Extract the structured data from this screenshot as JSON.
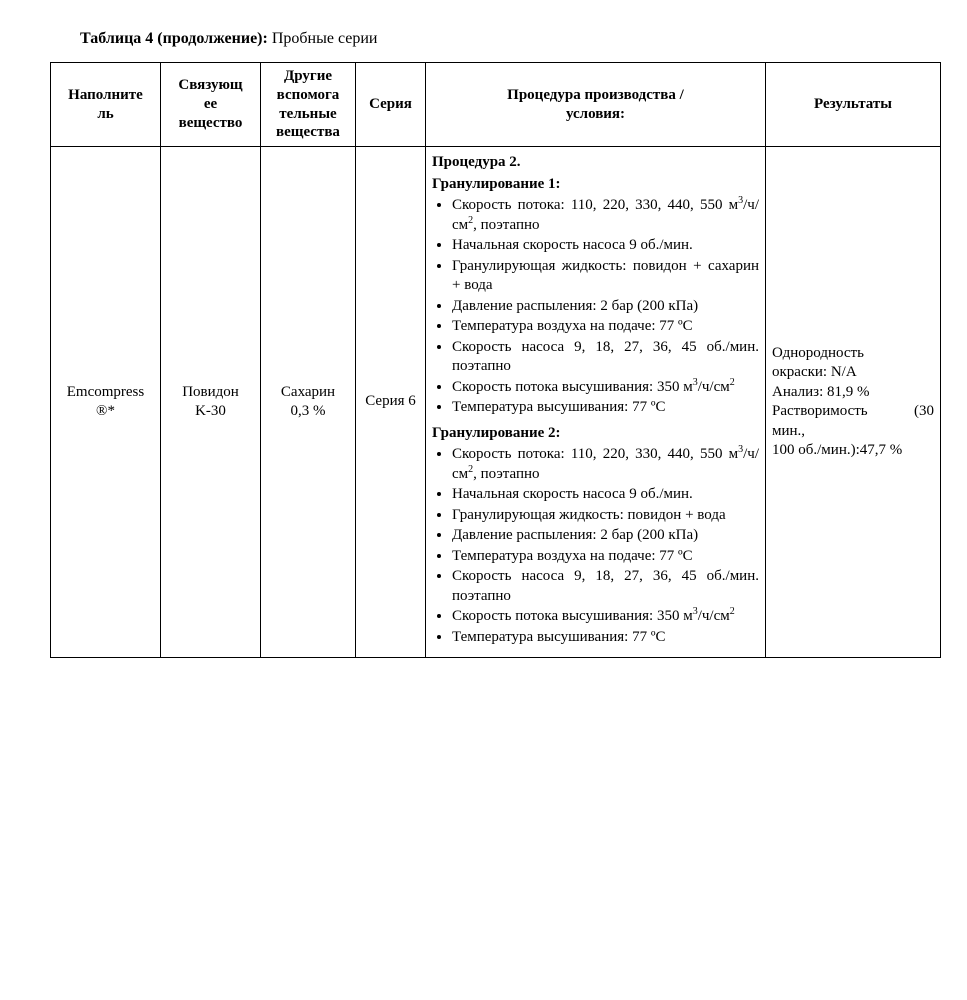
{
  "caption": {
    "bold": "Таблица 4 (продолжение):",
    "rest": " Пробные серии"
  },
  "columns": {
    "widths": [
      110,
      100,
      95,
      70,
      340,
      175
    ],
    "headers": [
      "Наполните\nль",
      "Связующ\nее\nвещество",
      "Другие\nвспомога\nтельные\nвещества",
      "Серия",
      "Процедура производства /\nусловия:",
      "Результаты"
    ]
  },
  "row": {
    "filler": "Emcompress\n®*",
    "binder": "Повидон\nK-30",
    "other": "Сахарин\n0,3 %",
    "series": "Серия 6",
    "procedure": {
      "title": "Процедура 2.",
      "gran1_title": "Гранулирование 1:",
      "gran1": [
        [
          "Скорость потока: 110, 220, 330, 440, 550 м",
          {
            "sup": "3"
          },
          "/ч/см",
          {
            "sup": "2"
          },
          ", поэтапно"
        ],
        [
          "Начальная скорость насоса 9 об./мин."
        ],
        [
          "Гранулирующая жидкость: повидон + сахарин + вода"
        ],
        [
          "Давление распыления: 2 бар (200 кПа)"
        ],
        [
          "Температура воздуха на подаче: 77 ºС"
        ],
        [
          "Скорость насоса 9, 18, 27, 36, 45 об./мин. поэтапно"
        ],
        [
          "Скорость потока высушивания: 350 м",
          {
            "sup": "3"
          },
          "/ч/см",
          {
            "sup": "2"
          }
        ],
        [
          "Температура высушивания: 77 ºС"
        ]
      ],
      "gran2_title": "Гранулирование 2:",
      "gran2": [
        [
          "Скорость потока: 110, 220, 330, 440, 550 м",
          {
            "sup": "3"
          },
          "/ч/см",
          {
            "sup": "2"
          },
          ", поэтапно"
        ],
        [
          "Начальная скорость насоса 9 об./мин."
        ],
        [
          "Гранулирующая жидкость: повидон + вода"
        ],
        [
          "Давление распыления: 2 бар (200 кПа)"
        ],
        [
          "Температура воздуха на подаче: 77 ºС"
        ],
        [
          "Скорость насоса 9, 18, 27, 36, 45 об./мин. поэтапно"
        ],
        [
          "Скорость потока высушивания: 350 м",
          {
            "sup": "3"
          },
          "/ч/см",
          {
            "sup": "2"
          }
        ],
        [
          "Температура высушивания: 77 ºС"
        ]
      ]
    },
    "results": [
      [
        "Однородность"
      ],
      [
        "окраски: N/A"
      ],
      [
        "Анализ: 81,9 %"
      ],
      [
        {
          "jline": [
            "Растворимость",
            "(30"
          ]
        }
      ],
      [
        "мин.,"
      ],
      [
        "100 об./мин.):47,7 %"
      ]
    ]
  }
}
